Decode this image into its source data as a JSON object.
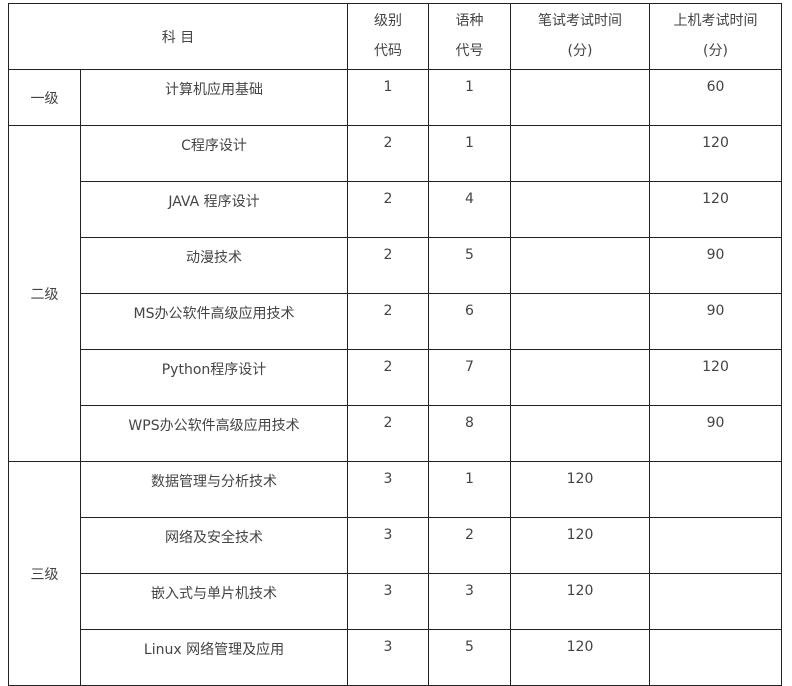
{
  "headers": {
    "subject": "科 目",
    "level_code_1": "级别",
    "level_code_2": "代码",
    "lang_code_1": "语种",
    "lang_code_2": "代号",
    "written_1": "笔试考试时间",
    "written_2": "(分)",
    "machine_1": "上机考试时间",
    "machine_2": "(分)"
  },
  "groups": [
    {
      "level": "一级",
      "rows": [
        {
          "subject": "计算机应用基础",
          "level_code": "1",
          "lang_code": "1",
          "written": "",
          "machine": "60"
        }
      ]
    },
    {
      "level": "二级",
      "rows": [
        {
          "subject": "C程序设计",
          "level_code": "2",
          "lang_code": "1",
          "written": "",
          "machine": "120"
        },
        {
          "subject": "JAVA 程序设计",
          "level_code": "2",
          "lang_code": "4",
          "written": "",
          "machine": "120"
        },
        {
          "subject": "动漫技术",
          "level_code": "2",
          "lang_code": "5",
          "written": "",
          "machine": "90"
        },
        {
          "subject": "MS办公软件高级应用技术",
          "level_code": "2",
          "lang_code": "6",
          "written": "",
          "machine": "90"
        },
        {
          "subject": "Python程序设计",
          "level_code": "2",
          "lang_code": "7",
          "written": "",
          "machine": "120"
        },
        {
          "subject": "WPS办公软件高级应用技术",
          "level_code": "2",
          "lang_code": "8",
          "written": "",
          "machine": "90"
        }
      ]
    },
    {
      "level": "三级",
      "rows": [
        {
          "subject": "数据管理与分析技术",
          "level_code": "3",
          "lang_code": "1",
          "written": "120",
          "machine": ""
        },
        {
          "subject": "网络及安全技术",
          "level_code": "3",
          "lang_code": "2",
          "written": "120",
          "machine": ""
        },
        {
          "subject": "嵌入式与单片机技术",
          "level_code": "3",
          "lang_code": "3",
          "written": "120",
          "machine": ""
        },
        {
          "subject": "Linux 网络管理及应用",
          "level_code": "3",
          "lang_code": "5",
          "written": "120",
          "machine": ""
        }
      ]
    }
  ]
}
